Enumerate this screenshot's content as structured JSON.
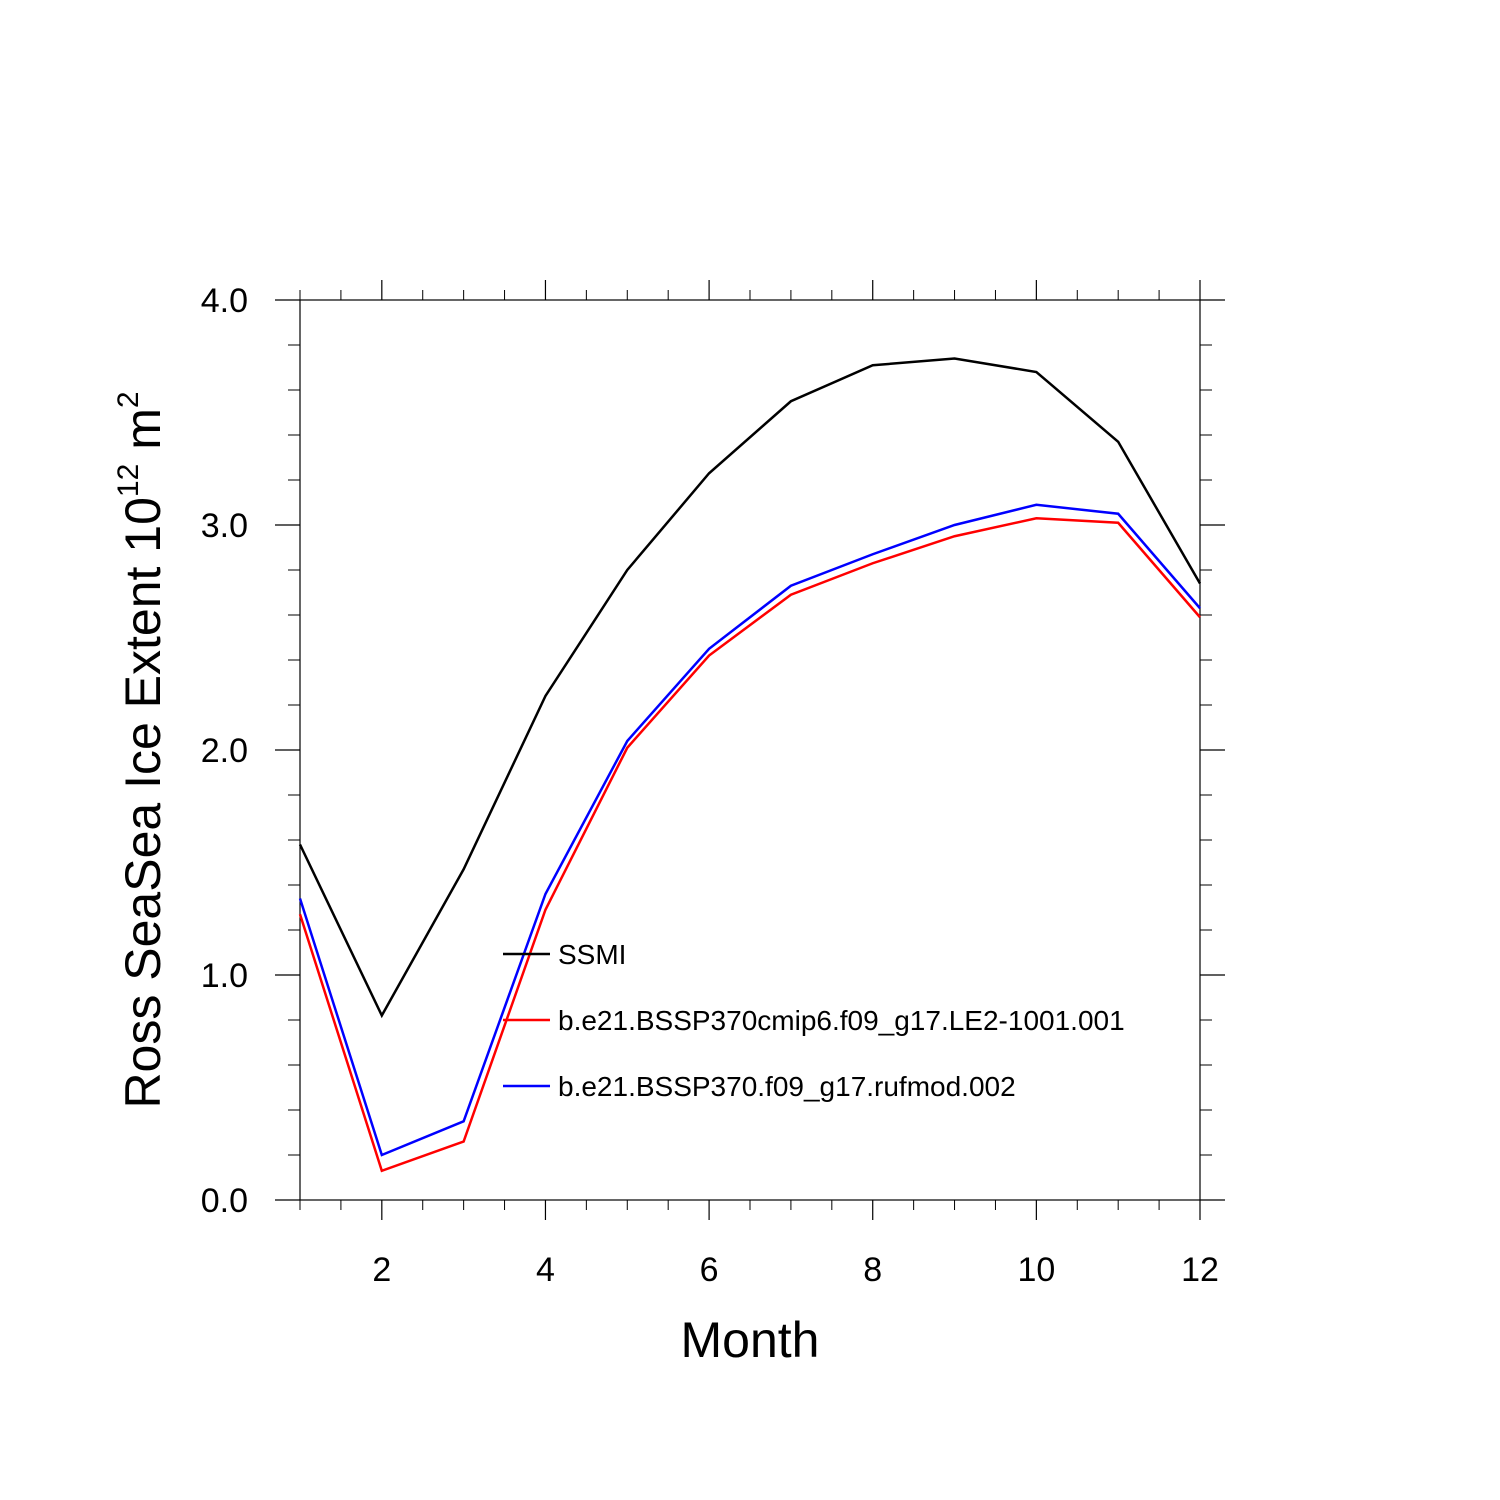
{
  "chart_data": {
    "type": "line",
    "xlabel": "Month",
    "ylabel": {
      "prefix": "Ross SeaSea Ice Extent 10",
      "exp": "12",
      "unit": " m",
      "unit_exp": "2"
    },
    "xlim": [
      1,
      12
    ],
    "ylim": [
      0,
      4
    ],
    "xticks": [
      2,
      4,
      6,
      8,
      10,
      12
    ],
    "xtick_labels": [
      "2",
      "4",
      "6",
      "8",
      "10",
      "12"
    ],
    "yticks": [
      0,
      1,
      2,
      3,
      4
    ],
    "ytick_labels": [
      "0.0",
      "1.0",
      "2.0",
      "3.0",
      "4.0"
    ],
    "x": [
      1,
      2,
      3,
      4,
      5,
      6,
      7,
      8,
      9,
      10,
      11,
      12
    ],
    "series": [
      {
        "name": "SSMI",
        "color": "#000000",
        "values": [
          1.58,
          0.82,
          1.47,
          2.24,
          2.8,
          3.23,
          3.55,
          3.71,
          3.74,
          3.68,
          3.37,
          2.74
        ]
      },
      {
        "name": "b.e21.BSSP370cmip6.f09_g17.LE2-1001.001",
        "color": "#ff0000",
        "values": [
          1.27,
          0.13,
          0.26,
          1.29,
          2.01,
          2.42,
          2.69,
          2.83,
          2.95,
          3.03,
          3.01,
          2.59
        ]
      },
      {
        "name": "b.e21.BSSP370.f09_g17.rufmod.002",
        "color": "#0000ff",
        "values": [
          1.34,
          0.2,
          0.35,
          1.36,
          2.04,
          2.45,
          2.73,
          2.87,
          3.0,
          3.09,
          3.05,
          2.63
        ]
      }
    ],
    "legend_position": "lower-center"
  }
}
